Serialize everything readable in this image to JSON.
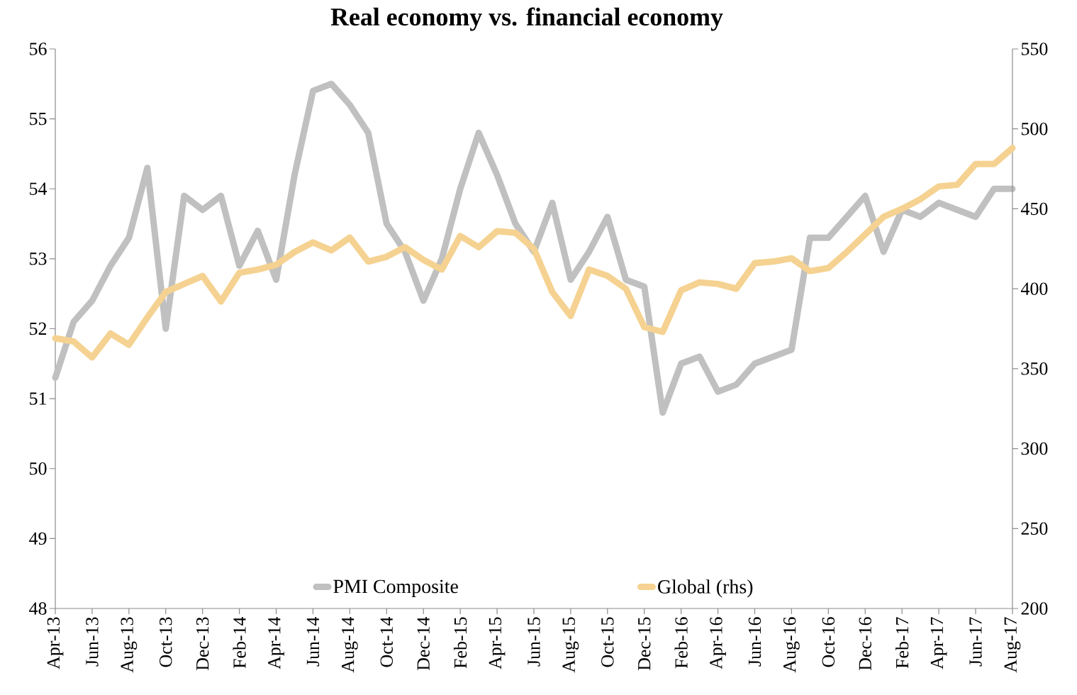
{
  "chart_data": {
    "type": "line",
    "title": "Real economy vs. financial economy",
    "categories": [
      "Apr-13",
      null,
      "Jun-13",
      null,
      "Aug-13",
      null,
      "Oct-13",
      null,
      "Dec-13",
      null,
      "Feb-14",
      null,
      "Apr-14",
      null,
      "Jun-14",
      null,
      "Aug-14",
      null,
      "Oct-14",
      null,
      "Dec-14",
      null,
      "Feb-15",
      null,
      "Apr-15",
      null,
      "Jun-15",
      null,
      "Aug-15",
      null,
      "Oct-15",
      null,
      "Dec-15",
      null,
      "Feb-16",
      null,
      "Apr-16",
      null,
      "Jun-16",
      null,
      "Aug-16",
      null,
      "Oct-16",
      null,
      "Dec-16",
      null,
      "Feb-17",
      null,
      "Apr-17",
      null,
      "Jun-17",
      null,
      "Aug-17"
    ],
    "series": [
      {
        "name": "PMI Composite",
        "color": "#c0c0c0",
        "values": [
          51.3,
          52.1,
          52.4,
          52.9,
          53.3,
          54.3,
          52.0,
          53.9,
          53.7,
          53.9,
          52.9,
          53.4,
          52.7,
          54.2,
          55.4,
          55.5,
          55.2,
          54.8,
          53.5,
          53.1,
          52.4,
          53.0,
          54.0,
          54.8,
          54.2,
          53.5,
          53.1,
          53.8,
          52.7,
          53.1,
          53.6,
          52.7,
          52.6,
          50.8,
          51.5,
          51.6,
          51.1,
          51.2,
          51.5,
          51.6,
          51.7,
          53.3,
          53.3,
          53.6,
          53.9,
          53.1,
          53.7,
          53.6,
          53.8,
          53.7,
          53.6,
          54.0,
          54.0
        ]
      },
      {
        "name": "Global (rhs)",
        "color": "#f5d291",
        "axis": "y2",
        "values": [
          369,
          367,
          357,
          372,
          365,
          382,
          398,
          403,
          408,
          392,
          410,
          412,
          415,
          423,
          429,
          424,
          432,
          417,
          420,
          426,
          418,
          412,
          433,
          426,
          436,
          435,
          425,
          398,
          383,
          412,
          408,
          400,
          376,
          373,
          399,
          404,
          403,
          400,
          416,
          417,
          419,
          411,
          413,
          423,
          434,
          445,
          450,
          456,
          464,
          465,
          478,
          478,
          488
        ]
      }
    ],
    "ylim": [
      48,
      56
    ],
    "yticks": [
      48,
      49,
      50,
      51,
      52,
      53,
      54,
      55,
      56
    ],
    "y2lim": [
      200,
      550
    ],
    "y2ticks": [
      200,
      250,
      300,
      350,
      400,
      450,
      500,
      550
    ],
    "legend": "bottom",
    "grid": false
  }
}
